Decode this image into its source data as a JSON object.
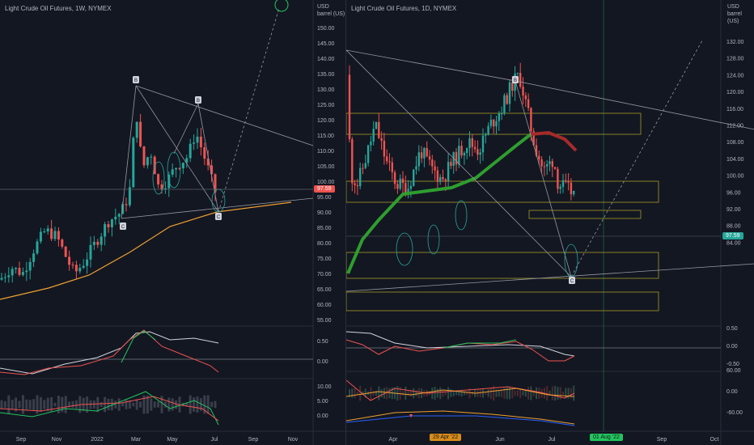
{
  "left_chart": {
    "title": "Light Crude Oil Futures, 1W, NYMEX",
    "currency": "USD",
    "unit": "barrel (US)",
    "last_price": "97.59",
    "x_ticks": [
      "Sep",
      "Nov",
      "2022",
      "Mar",
      "May",
      "Jul",
      "Sep",
      "Nov"
    ],
    "y_ticks": [
      "150.00",
      "145.00",
      "140.00",
      "135.00",
      "130.00",
      "125.00",
      "120.00",
      "115.00",
      "110.00",
      "105.00",
      "100.00",
      "95.00",
      "90.00",
      "85.00",
      "80.00",
      "75.00",
      "70.00",
      "65.00",
      "60.00",
      "55.00"
    ],
    "osc1_ticks": [
      "0.50",
      "0.00"
    ],
    "osc2_ticks": [
      "10.00",
      "5.00",
      "0.00"
    ],
    "pattern_labels": [
      "B",
      "B",
      "C",
      "C"
    ]
  },
  "right_chart": {
    "title": "Light Crude Oil Futures, 1D, NYMEX",
    "currency": "USD",
    "unit": "barrel (US)",
    "last_price": "97.59",
    "x_ticks": [
      "Apr",
      "Jun",
      "Jul",
      "Sep",
      "Oct"
    ],
    "date_badge_orange": "29 Apr '22",
    "date_badge_green": "01 Aug '22",
    "y_ticks": [
      "132.00",
      "128.00",
      "124.00",
      "120.00",
      "116.00",
      "112.00",
      "108.00",
      "104.00",
      "100.00",
      "96.00",
      "92.00",
      "88.00",
      "84.00"
    ],
    "osc1_ticks": [
      "0.50",
      "0.00",
      "-0.50"
    ],
    "osc2_ticks": [
      "60.00",
      "0.00",
      "-60.00"
    ],
    "pattern_labels": [
      "B",
      "C"
    ]
  },
  "colors": {
    "background": "#131722",
    "bull": "#26a69a",
    "bear": "#ef5350",
    "ma_orange": "#f0a030",
    "ma_green": "#2e9e2e",
    "ma_red": "#a82a2a",
    "box_yellow": "#a59a2a",
    "price_badge": "#ef5350",
    "price_badge_right": "#26a69a"
  }
}
